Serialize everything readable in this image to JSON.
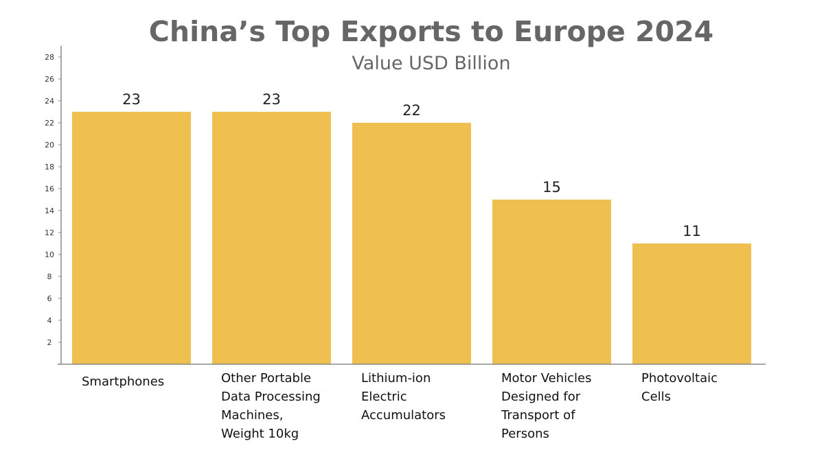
{
  "chart_data": {
    "type": "bar",
    "title": "China’s Top Exports to Europe 2024",
    "subtitle": "Value USD Billion",
    "categories": [
      [
        "Smartphones"
      ],
      [
        "Other Portable",
        "Data Processing",
        "Machines,",
        "Weight 10kg"
      ],
      [
        "Lithium-ion",
        "Electric",
        "Accumulators"
      ],
      [
        "Motor Vehicles",
        "Designed for",
        "Transport of",
        "Persons"
      ],
      [
        "Photovoltaic",
        "Cells"
      ]
    ],
    "values": [
      23,
      23,
      22,
      15,
      11
    ],
    "data_labels": [
      "23",
      "23",
      "22",
      "15",
      "11"
    ],
    "y_ticks": [
      2,
      4,
      6,
      8,
      10,
      12,
      14,
      16,
      18,
      20,
      22,
      24,
      26,
      28
    ],
    "ylim": [
      0,
      29
    ],
    "grid": false,
    "legend": "none",
    "bar_color": "#EFBF4F",
    "axis_color": "#888888"
  }
}
